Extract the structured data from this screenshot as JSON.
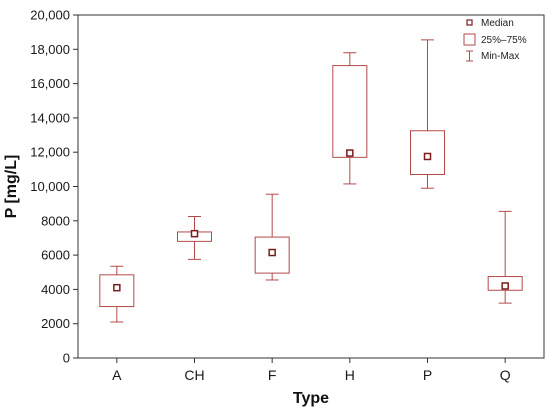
{
  "chart_data": {
    "type": "box",
    "xlabel": "Type",
    "ylabel": "P [mg/L]",
    "ylim": [
      0,
      20000
    ],
    "yticks": [
      0,
      2000,
      4000,
      6000,
      8000,
      10000,
      12000,
      14000,
      16000,
      18000,
      20000
    ],
    "ytick_labels": [
      "0",
      "2000",
      "4000",
      "6000",
      "8000",
      "10,000",
      "12,000",
      "14,000",
      "16,000",
      "18,000",
      "20,000"
    ],
    "categories": [
      "A",
      "CH",
      "F",
      "H",
      "P",
      "Q"
    ],
    "boxes": [
      {
        "category": "A",
        "min": 2100,
        "q1": 3000,
        "median": 4100,
        "q3": 4850,
        "max": 5350
      },
      {
        "category": "CH",
        "min": 5750,
        "q1": 6800,
        "median": 7250,
        "q3": 7350,
        "max": 8250
      },
      {
        "category": "F",
        "min": 4550,
        "q1": 4950,
        "median": 6150,
        "q3": 7050,
        "max": 9550
      },
      {
        "category": "H",
        "min": 10150,
        "q1": 11700,
        "median": 11950,
        "q3": 17050,
        "max": 17800
      },
      {
        "category": "P",
        "min": 9900,
        "q1": 10700,
        "median": 11750,
        "q3": 13250,
        "max": 18550
      },
      {
        "category": "Q",
        "min": 3200,
        "q1": 3950,
        "median": 4200,
        "q3": 4750,
        "max": 8550
      }
    ],
    "legend": {
      "position": "top-right",
      "entries": [
        "Median",
        "25%–75%",
        "Min-Max"
      ]
    },
    "grid": false,
    "colors": {
      "box": "#b34a4a",
      "median_fill": "#7a1c1c",
      "axis": "#333333"
    }
  }
}
